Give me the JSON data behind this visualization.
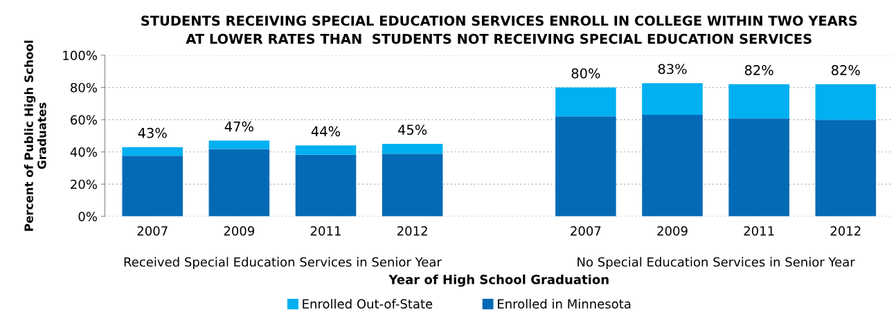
{
  "chart_data": {
    "type": "bar",
    "stacked": true,
    "title": "STUDENTS RECEIVING SPECIAL EDUCATION SERVICES ENROLL IN COLLEGE WITHIN TWO YEARS\nAT LOWER RATES THAN  STUDENTS NOT RECEIVING SPECIAL EDUCATION SERVICES",
    "xlabel": "Year of High School Graduation",
    "ylabel": "Percent of Public High School\nGraduates",
    "categories": [
      "2007",
      "2009",
      "2011",
      "2012",
      null,
      "2007",
      "2009",
      "2011",
      "2012"
    ],
    "series": [
      {
        "name": "Enrolled in Minnesota",
        "color": "#056ab5",
        "values": [
          37.6,
          41.8,
          38.2,
          38.9,
          null,
          62.1,
          63.0,
          60.8,
          59.9
        ]
      },
      {
        "name": "Enrolled Out-of-State",
        "color": "#00b0f0",
        "values": [
          5.4,
          5.2,
          5.8,
          6.1,
          null,
          17.9,
          19.7,
          21.2,
          22.1
        ]
      }
    ],
    "totals": [
      "43%",
      "47%",
      "44%",
      "45%",
      null,
      "80%",
      "83%",
      "82%",
      "82%"
    ],
    "annotations": [
      "Received Special Education Services in Senior Year",
      "No Special Education Services in Senior Year"
    ],
    "ylim": [
      0,
      100
    ],
    "yticks": [
      {
        "value": 0,
        "label": "0%"
      },
      {
        "value": 20,
        "label": "20%"
      },
      {
        "value": 40,
        "label": "40%"
      },
      {
        "value": 60,
        "label": "60%"
      },
      {
        "value": 80,
        "label": "80%"
      },
      {
        "value": 100,
        "label": "100%"
      }
    ],
    "grid": "y",
    "legend": "bottom"
  }
}
